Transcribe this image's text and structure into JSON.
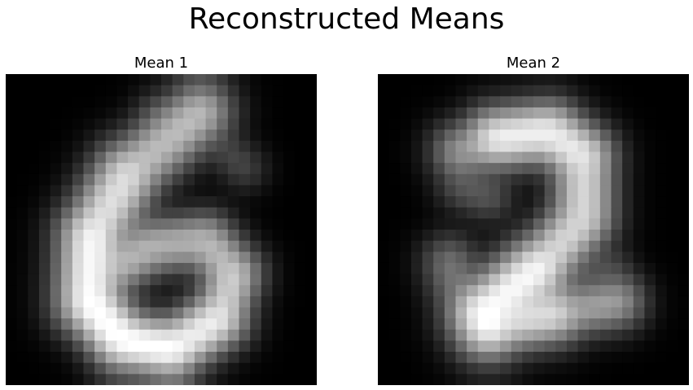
{
  "figure": {
    "title": "Reconstructed Means"
  },
  "chart_data": [
    {
      "type": "heatmap",
      "title": "Mean 1",
      "colormap": "gray",
      "value_range": [
        0,
        1
      ],
      "description": "28x28 grayscale reconstruction resembling digit 6",
      "strokes": [
        {
          "kind": "line",
          "p0": [
            17.5,
            3.5
          ],
          "p1": [
            11.0,
            9.0
          ],
          "w": 2.1,
          "v": 0.72
        },
        {
          "kind": "line",
          "p0": [
            11.0,
            9.0
          ],
          "p1": [
            7.8,
            14.5
          ],
          "w": 2.2,
          "v": 0.85
        },
        {
          "kind": "line",
          "p0": [
            7.8,
            14.5
          ],
          "p1": [
            7.5,
            20.5
          ],
          "w": 2.2,
          "v": 0.95
        },
        {
          "kind": "line",
          "p0": [
            7.5,
            20.5
          ],
          "p1": [
            10.5,
            24.0
          ],
          "w": 2.0,
          "v": 1.0
        },
        {
          "kind": "line",
          "p0": [
            10.5,
            24.0
          ],
          "p1": [
            15.0,
            24.8
          ],
          "w": 1.9,
          "v": 1.0
        },
        {
          "kind": "line",
          "p0": [
            15.0,
            24.8
          ],
          "p1": [
            19.2,
            22.0
          ],
          "w": 1.9,
          "v": 0.92
        },
        {
          "kind": "line",
          "p0": [
            19.2,
            22.0
          ],
          "p1": [
            20.5,
            18.0
          ],
          "w": 1.8,
          "v": 0.8
        },
        {
          "kind": "line",
          "p0": [
            20.5,
            18.0
          ],
          "p1": [
            18.0,
            15.0
          ],
          "w": 1.8,
          "v": 0.72
        },
        {
          "kind": "line",
          "p0": [
            18.0,
            15.0
          ],
          "p1": [
            13.0,
            15.5
          ],
          "w": 1.8,
          "v": 0.68
        },
        {
          "kind": "line",
          "p0": [
            13.0,
            15.5
          ],
          "p1": [
            9.0,
            18.0
          ],
          "w": 1.8,
          "v": 0.7
        },
        {
          "kind": "line",
          "p0": [
            14.0,
            4.0
          ],
          "p1": [
            17.5,
            3.5
          ],
          "w": 1.6,
          "v": 0.45
        },
        {
          "kind": "line",
          "p0": [
            16.0,
            3.0
          ],
          "p1": [
            21.5,
            8.5
          ],
          "w": 1.4,
          "v": 0.28
        }
      ]
    },
    {
      "type": "heatmap",
      "title": "Mean 2",
      "colormap": "gray",
      "value_range": [
        0,
        1
      ],
      "description": "28x28 grayscale reconstruction resembling digit 2",
      "strokes": [
        {
          "kind": "line",
          "p0": [
            7.5,
            7.0
          ],
          "p1": [
            10.5,
            5.8
          ],
          "w": 1.9,
          "v": 0.6
        },
        {
          "kind": "line",
          "p0": [
            10.5,
            5.8
          ],
          "p1": [
            15.5,
            5.2
          ],
          "w": 2.0,
          "v": 0.92
        },
        {
          "kind": "line",
          "p0": [
            15.5,
            5.2
          ],
          "p1": [
            18.5,
            7.5
          ],
          "w": 2.0,
          "v": 0.9
        },
        {
          "kind": "line",
          "p0": [
            18.5,
            7.5
          ],
          "p1": [
            18.5,
            13.0
          ],
          "w": 2.0,
          "v": 0.82
        },
        {
          "kind": "line",
          "p0": [
            18.5,
            13.0
          ],
          "p1": [
            14.5,
            17.5
          ],
          "w": 2.0,
          "v": 0.82
        },
        {
          "kind": "line",
          "p0": [
            14.5,
            17.5
          ],
          "p1": [
            9.5,
            21.5
          ],
          "w": 2.2,
          "v": 0.95
        },
        {
          "kind": "line",
          "p0": [
            9.5,
            21.5
          ],
          "p1": [
            10.0,
            22.5
          ],
          "w": 2.3,
          "v": 1.0
        },
        {
          "kind": "line",
          "p0": [
            10.0,
            22.5
          ],
          "p1": [
            16.0,
            21.5
          ],
          "w": 2.0,
          "v": 0.85
        },
        {
          "kind": "line",
          "p0": [
            16.0,
            21.5
          ],
          "p1": [
            21.5,
            20.5
          ],
          "w": 1.8,
          "v": 0.62
        },
        {
          "kind": "line",
          "p0": [
            7.5,
            10.0
          ],
          "p1": [
            10.0,
            11.0
          ],
          "w": 1.6,
          "v": 0.35
        },
        {
          "kind": "line",
          "p0": [
            6.5,
            17.0
          ],
          "p1": [
            8.0,
            22.0
          ],
          "w": 1.8,
          "v": 0.45
        },
        {
          "kind": "line",
          "p0": [
            16.0,
            18.0
          ],
          "p1": [
            21.0,
            17.5
          ],
          "w": 1.4,
          "v": 0.32
        }
      ]
    }
  ]
}
